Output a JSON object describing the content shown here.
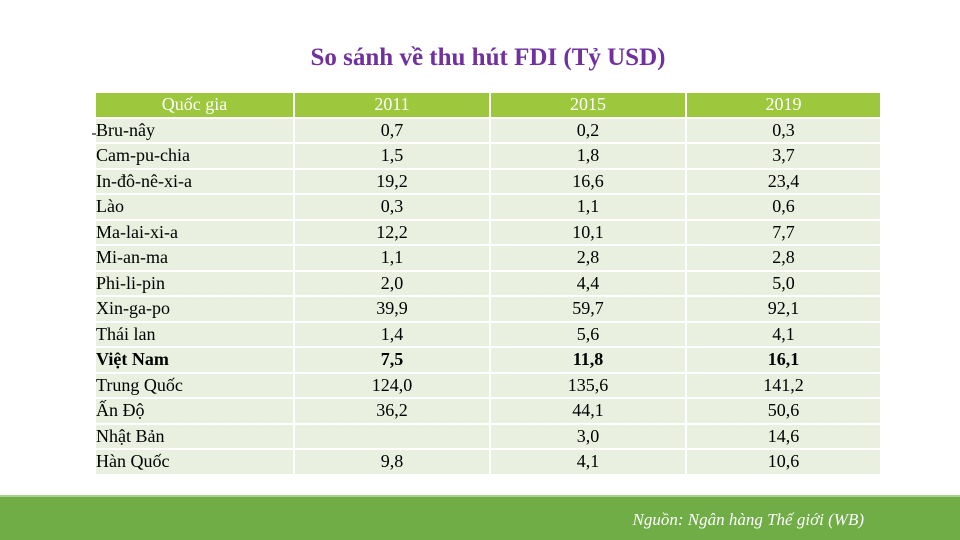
{
  "title": "So sánh về thu hút FDI (Tỷ USD)",
  "table": {
    "headers": [
      "Quốc gia",
      "2011",
      "2015",
      "2019"
    ],
    "rows": [
      {
        "country": "Bru-nây",
        "y2011": "0,7",
        "y2015": "0,2",
        "y2019": "0,3"
      },
      {
        "country": "Cam-pu-chia",
        "y2011": "1,5",
        "y2015": "1,8",
        "y2019": "3,7"
      },
      {
        "country": "In-đô-nê-xi-a",
        "y2011": "19,2",
        "y2015": "16,6",
        "y2019": "23,4"
      },
      {
        "country": "Lào",
        "y2011": "0,3",
        "y2015": "1,1",
        "y2019": "0,6"
      },
      {
        "country": "Ma-lai-xi-a",
        "y2011": "12,2",
        "y2015": "10,1",
        "y2019": "7,7"
      },
      {
        "country": "Mi-an-ma",
        "y2011": "1,1",
        "y2015": "2,8",
        "y2019": "2,8"
      },
      {
        "country": "Phi-li-pin",
        "y2011": "2,0",
        "y2015": "4,4",
        "y2019": "5,0"
      },
      {
        "country": "Xin-ga-po",
        "y2011": "39,9",
        "y2015": "59,7",
        "y2019": "92,1"
      },
      {
        "country": "Thái lan",
        "y2011": "1,4",
        "y2015": "5,6",
        "y2019": "4,1"
      },
      {
        "country": "Việt Nam",
        "y2011": "7,5",
        "y2015": "11,8",
        "y2019": "16,1"
      },
      {
        "country": "Trung Quốc",
        "y2011": "124,0",
        "y2015": "135,6",
        "y2019": "141,2"
      },
      {
        "country": "Ấn Độ",
        "y2011": "36,2",
        "y2015": "44,1",
        "y2019": "50,6"
      },
      {
        "country": "Nhật Bản",
        "y2011": "",
        "y2015": "3,0",
        "y2019": "14,6"
      },
      {
        "country": "Hàn Quốc",
        "y2011": "9,8",
        "y2015": "4,1",
        "y2019": "10,6"
      }
    ]
  },
  "source": "Nguồn: Ngân hàng Thế giới (WB)",
  "colors": {
    "title": "#7030a0",
    "header": "#9dc83d",
    "row": "#e9f0df",
    "footer": "#70ad47"
  }
}
